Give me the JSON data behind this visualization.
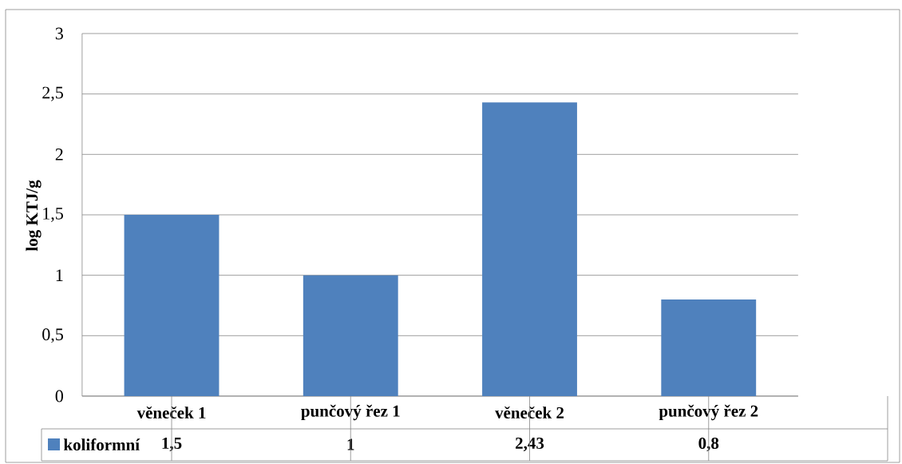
{
  "chart_data": {
    "type": "bar",
    "ylabel": "log KTJ/g",
    "categories": [
      "věneček 1",
      "punčový řez 1",
      "věneček 2",
      "punčový řez 2"
    ],
    "series": [
      {
        "name": "koliformní",
        "color": "#4f81bd",
        "values": [
          1.5,
          1,
          2.43,
          0.8
        ],
        "value_labels": [
          "1,5",
          "1",
          "2,43",
          "0,8"
        ]
      }
    ],
    "ylim": [
      0,
      3
    ],
    "yticks": [
      0,
      {
        "value": 0.5,
        "label": "0,5"
      },
      1,
      {
        "value": 1.5,
        "label": "1,5"
      },
      2,
      {
        "value": 2.5,
        "label": "2,5"
      },
      3
    ],
    "grid": "y",
    "legend": "bottom"
  }
}
